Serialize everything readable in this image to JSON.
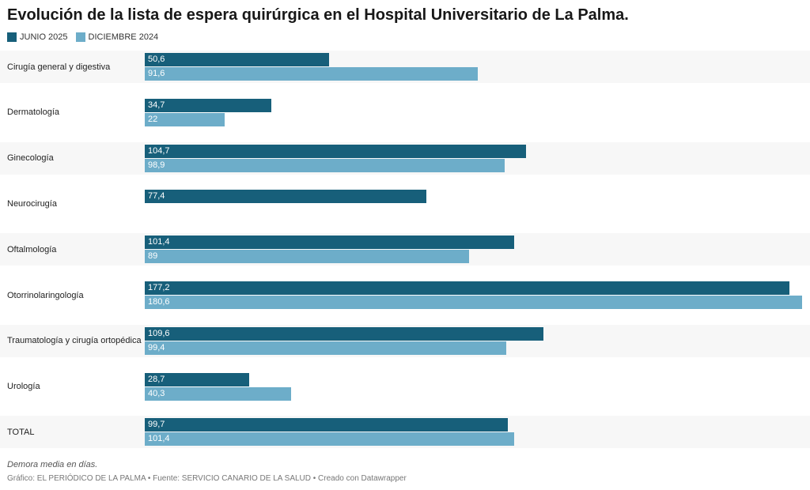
{
  "title": "Evolución de la lista de espera quirúrgica en el Hospital Universitario de La Palma.",
  "colors": {
    "junio": "#175f7a",
    "diciembre": "#6dadc9",
    "band": "#f7f7f7"
  },
  "chart_data": {
    "type": "bar",
    "orientation": "horizontal",
    "title": "Evolución de la lista de espera quirúrgica en el Hospital Universitario de La Palma.",
    "xlim": [
      0,
      180.6
    ],
    "grid": false,
    "legend_position": "top-left",
    "categories": [
      "Cirugía general y digestiva",
      "Dermatología",
      "Ginecología",
      "Neurocirugía",
      "Oftalmología",
      "Otorrinolaringología",
      "Traumatología y cirugía ortopédica",
      "Urología",
      "TOTAL"
    ],
    "series": [
      {
        "name": "JUNIO 2025",
        "values": [
          50.6,
          34.7,
          104.7,
          77.4,
          101.4,
          177.2,
          109.6,
          28.7,
          99.7
        ],
        "labels": [
          "50,6",
          "34,7",
          "104,7",
          "77,4",
          "101,4",
          "177,2",
          "109,6",
          "28,7",
          "99,7"
        ]
      },
      {
        "name": "DICIEMBRE 2024",
        "values": [
          91.6,
          22,
          98.9,
          null,
          89,
          180.6,
          99.4,
          40.3,
          101.4
        ],
        "labels": [
          "91,6",
          "22",
          "98,9",
          "",
          "89",
          "180,6",
          "99,4",
          "40,3",
          "101,4"
        ]
      }
    ]
  },
  "note": "Demora media en días.",
  "footer": "Gráfico: EL PERIÓDICO DE LA PALMA • Fuente: SERVICIO CANARIO DE LA SALUD • Creado con Datawrapper"
}
